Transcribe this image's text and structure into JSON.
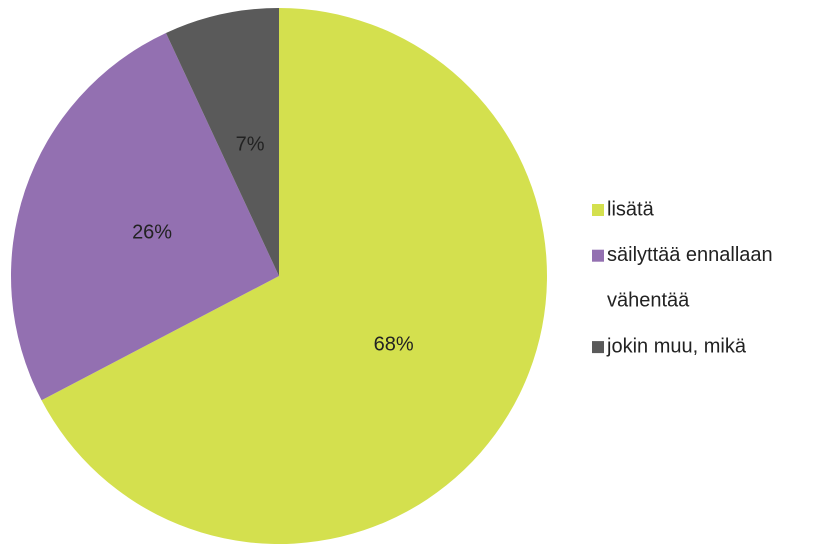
{
  "chart_data": {
    "type": "pie",
    "categories": [
      "lisätä",
      "säilyttää ennallaan",
      "vähentää",
      "jokin muu, mikä"
    ],
    "values": [
      68,
      26,
      0,
      7
    ],
    "value_labels": [
      "68%",
      "26%",
      null,
      "7%"
    ],
    "colors": [
      "#d4e04e",
      "#9370b1",
      "#ffffff",
      "#5a5a5a"
    ],
    "legend": "right"
  }
}
